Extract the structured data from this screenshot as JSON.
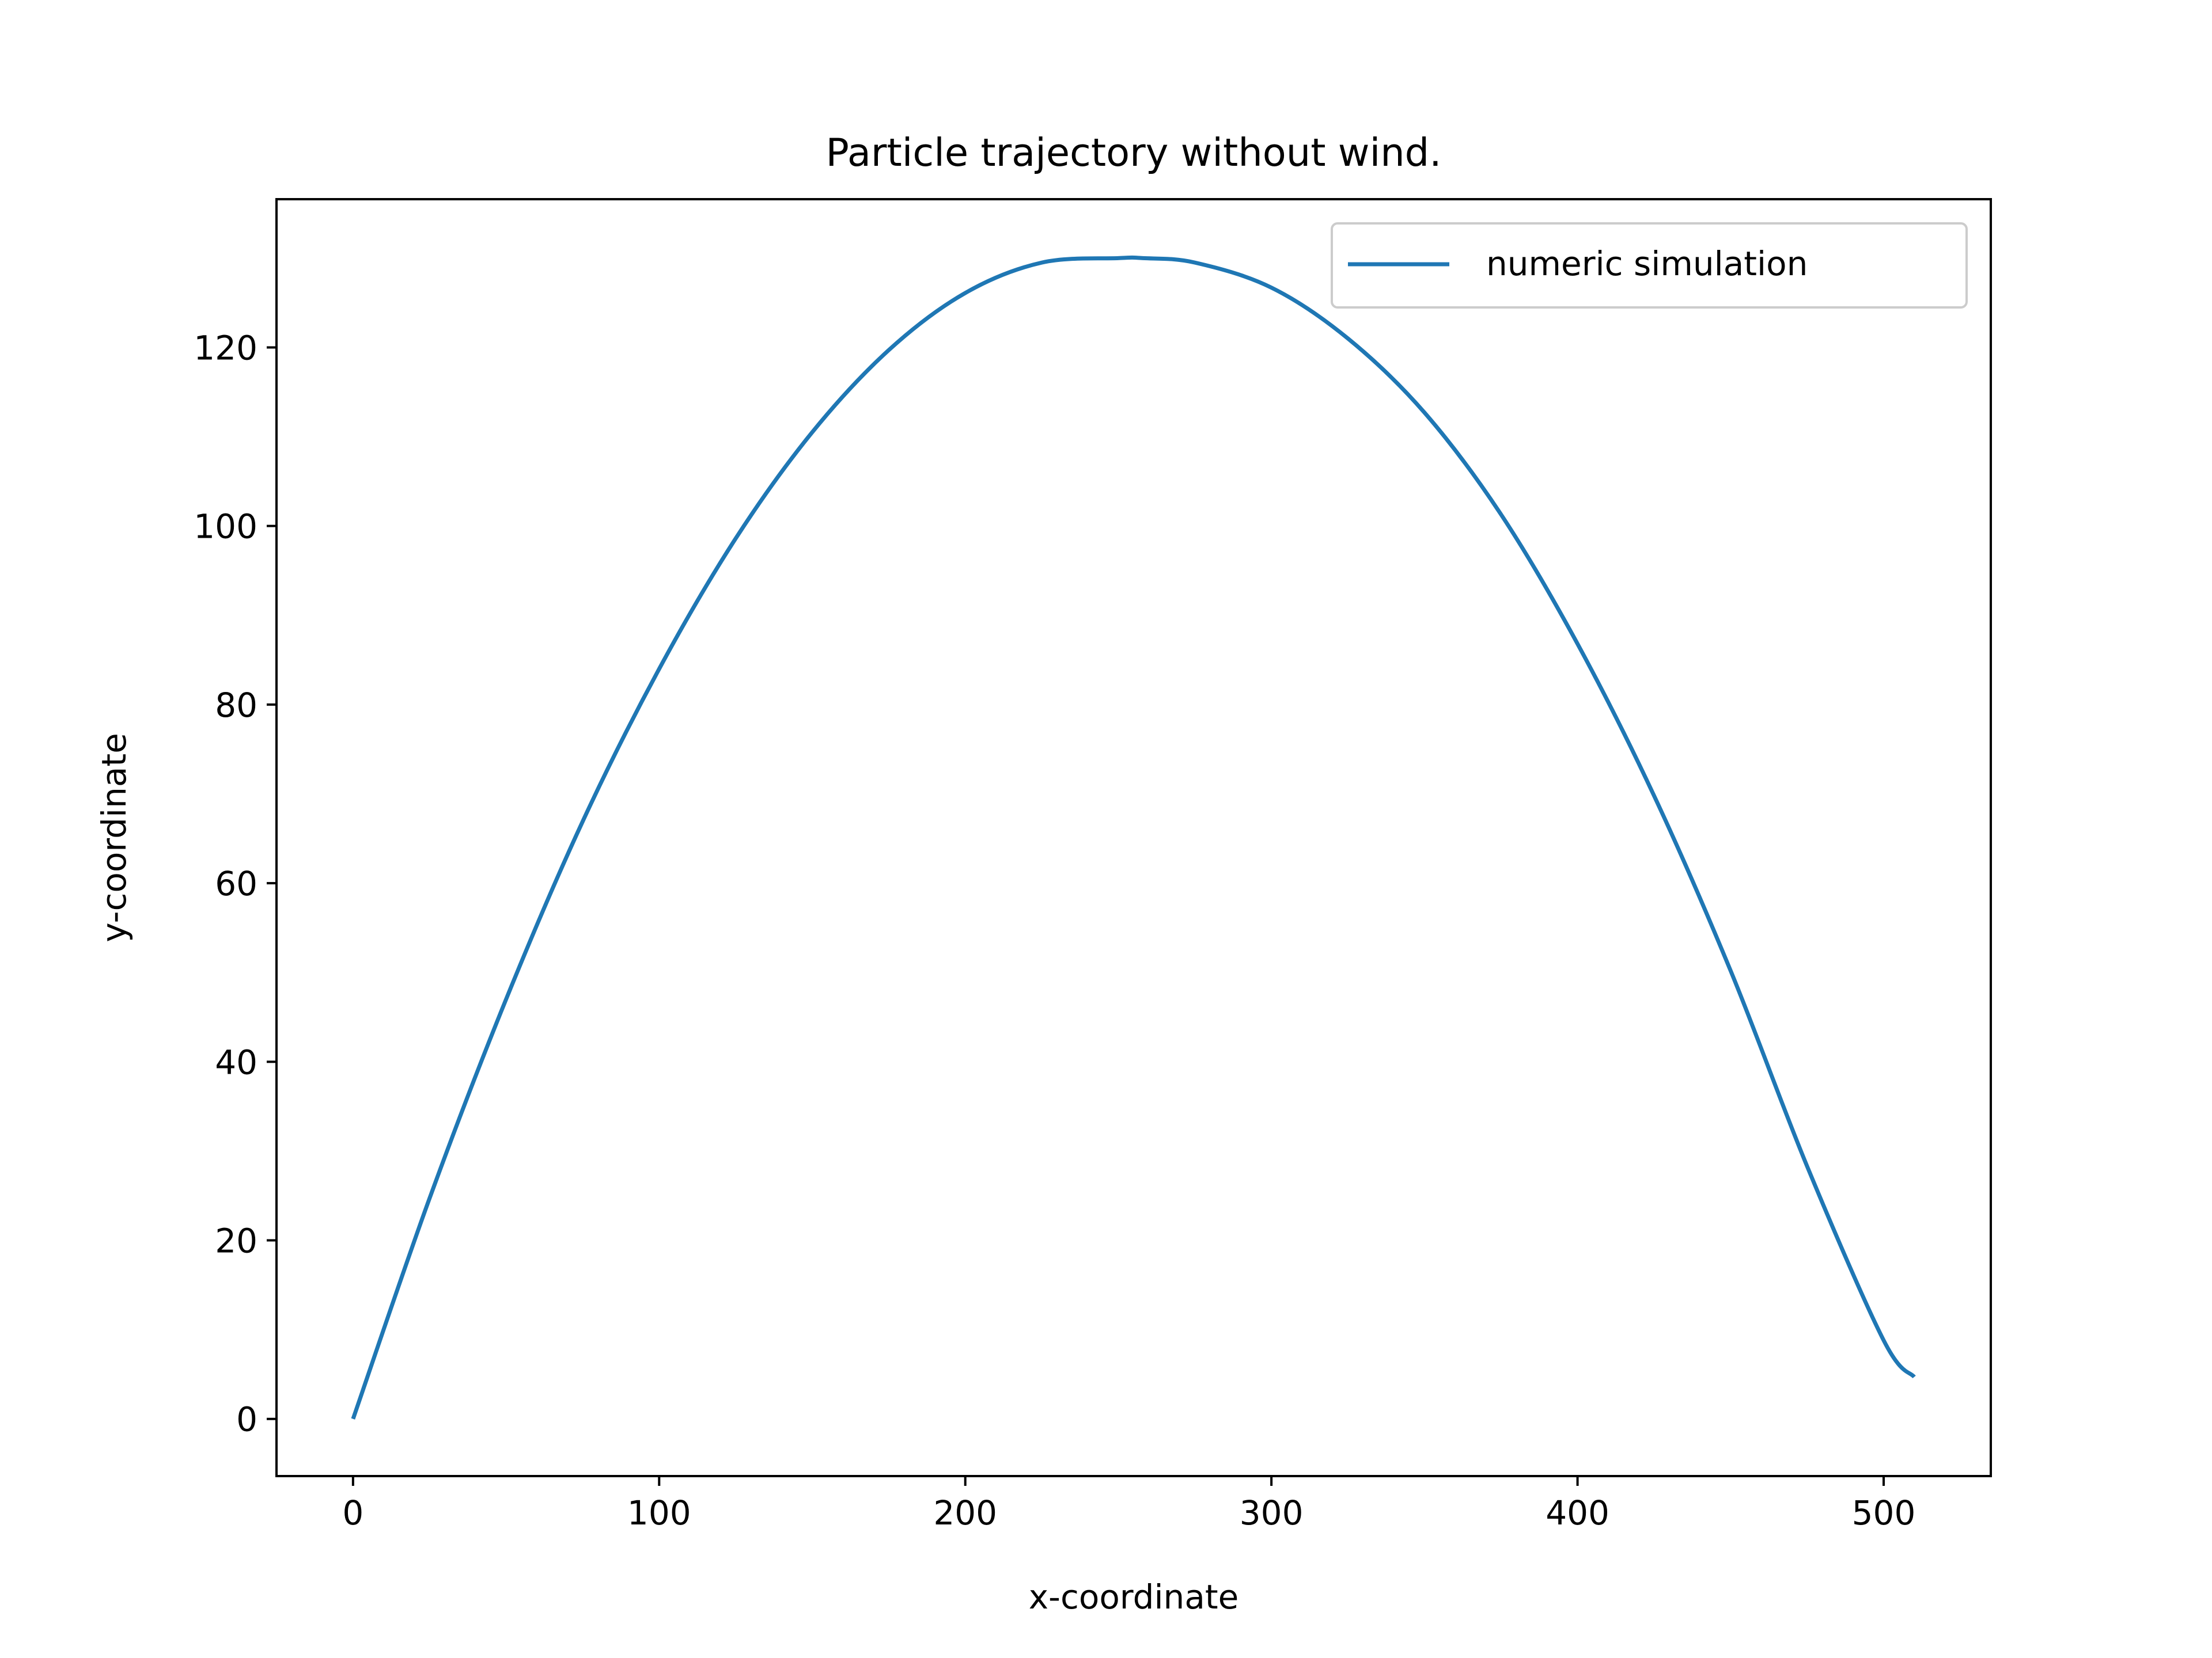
{
  "chart_data": {
    "type": "line",
    "title": "Particle trajectory without wind.",
    "xlabel": "x-coordinate",
    "ylabel": "y-coordinate",
    "xlim": [
      -25,
      535
    ],
    "ylim": [
      -6.4,
      136.6
    ],
    "xticks": [
      0,
      100,
      200,
      300,
      400,
      500
    ],
    "yticks": [
      0,
      20,
      40,
      60,
      80,
      100,
      120
    ],
    "xtick_labels": [
      "0",
      "100",
      "200",
      "300",
      "400",
      "500"
    ],
    "ytick_labels": [
      "0",
      "20",
      "40",
      "60",
      "80",
      "100",
      "120"
    ],
    "grid": false,
    "legend_position": "top-right",
    "colors": {
      "series": "#1f77b4"
    },
    "series": [
      {
        "name": "numeric simulation",
        "x": [
          0,
          25,
          50,
          75,
          100,
          125,
          150,
          175,
          200,
          225,
          250,
          258,
          275,
          300,
          325,
          350,
          375,
          400,
          425,
          450,
          475,
          500,
          510
        ],
        "y": [
          0,
          24.7,
          47.0,
          66.9,
          84.0,
          98.6,
          110.5,
          119.7,
          126.1,
          129.5,
          130.0,
          130.0,
          129.5,
          126.7,
          121.0,
          112.7,
          101.3,
          86.8,
          69.8,
          50.2,
          28.3,
          8.8,
          4.7
        ]
      }
    ]
  }
}
